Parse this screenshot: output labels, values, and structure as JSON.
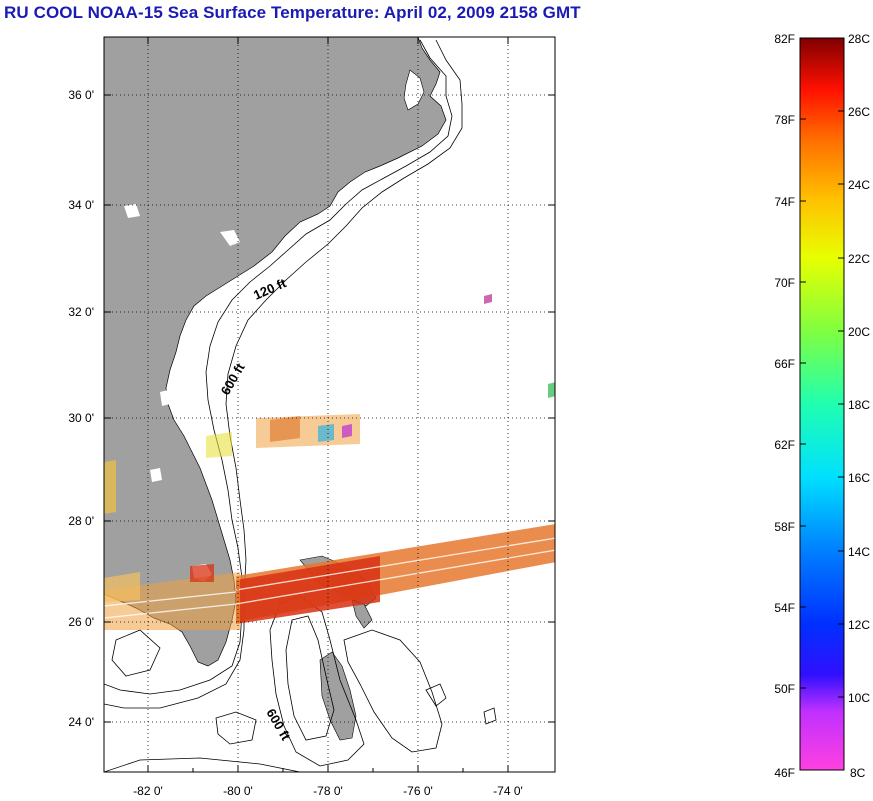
{
  "title": "RU COOL  NOAA-15  Sea Surface Temperature:  April 02, 2009 2158 GMT",
  "map": {
    "lon_ticks": [
      "-82 0'",
      "-80 0'",
      "-78 0'",
      "-76 0'",
      "-74 0'"
    ],
    "lon_values": [
      -82,
      -80,
      -78,
      -76,
      -74
    ],
    "lat_ticks": [
      "36 0'",
      "34 0'",
      "32 0'",
      "30 0'",
      "28 0'",
      "26 0'",
      "24 0'"
    ],
    "lat_values": [
      36,
      34,
      32,
      30,
      28,
      26,
      24
    ],
    "lon_range": [
      -83,
      -73
    ],
    "lat_range": [
      23,
      37
    ],
    "contour_labels": [
      "120 ft",
      "600 ft",
      "600 ft"
    ],
    "colors": {
      "land": "#a0a0a0",
      "grid": "#000000",
      "ocean": "#ffffff"
    }
  },
  "colorbar": {
    "fahrenheit": [
      "82F",
      "78F",
      "74F",
      "70F",
      "66F",
      "62F",
      "58F",
      "54F",
      "50F",
      "46F"
    ],
    "celsius": [
      "28C",
      "26C",
      "24C",
      "22C",
      "20C",
      "18C",
      "16C",
      "14C",
      "12C",
      "10C",
      "8C"
    ],
    "range_c": [
      8,
      28
    ],
    "range_f": [
      46,
      82
    ]
  }
}
